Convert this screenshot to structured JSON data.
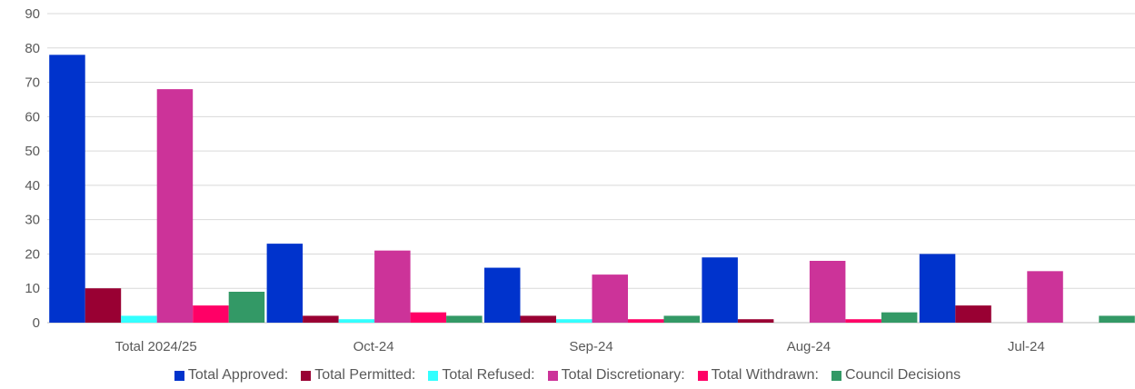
{
  "chart_data": {
    "type": "bar",
    "title": "",
    "xlabel": "",
    "ylabel": "",
    "ylim": [
      0,
      90
    ],
    "yticks": [
      0,
      10,
      20,
      30,
      40,
      50,
      60,
      70,
      80,
      90
    ],
    "grid": true,
    "legend_position": "bottom",
    "categories": [
      "Total 2024/25",
      "Oct-24",
      "Sep-24",
      "Aug-24",
      "Jul-24"
    ],
    "series": [
      {
        "name": "Total Approved:",
        "color": "#0033cc",
        "values": [
          78,
          23,
          16,
          19,
          20
        ]
      },
      {
        "name": "Total Permitted:",
        "color": "#990033",
        "values": [
          10,
          2,
          2,
          1,
          5
        ]
      },
      {
        "name": "Total Refused:",
        "color": "#33ffff",
        "values": [
          2,
          1,
          1,
          0,
          0
        ]
      },
      {
        "name": "Total Discretionary:",
        "color": "#cc3399",
        "values": [
          68,
          21,
          14,
          18,
          15
        ]
      },
      {
        "name": "Total Withdrawn:",
        "color": "#ff0066",
        "values": [
          5,
          3,
          1,
          1,
          0
        ]
      },
      {
        "name": "Council Decisions",
        "color": "#339966",
        "values": [
          9,
          2,
          2,
          3,
          2
        ]
      }
    ]
  }
}
